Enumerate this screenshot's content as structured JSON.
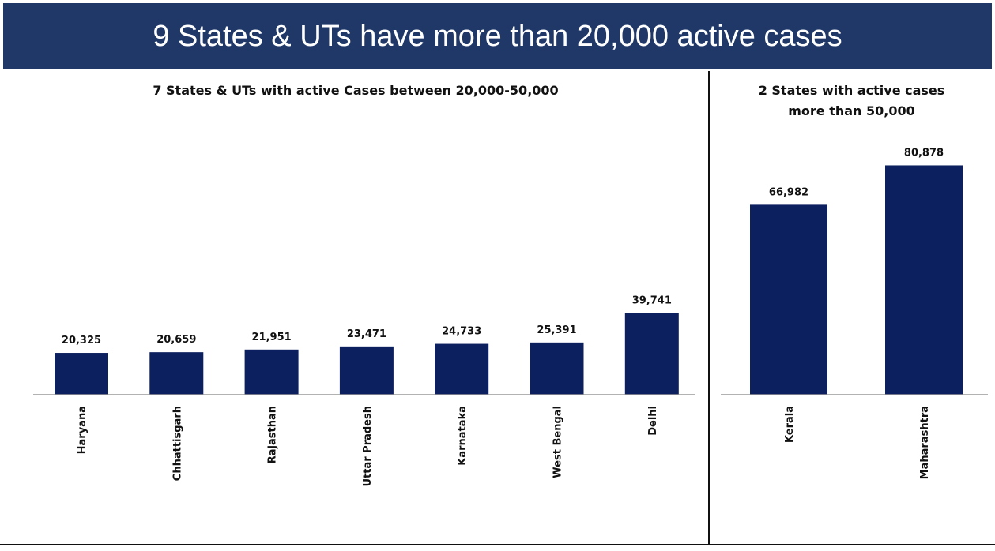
{
  "title": "9 States & UTs have more than 20,000 active cases",
  "chart_data": [
    {
      "type": "bar",
      "title": "7 States & UTs with active Cases between 20,000-50,000",
      "categories": [
        "Haryana",
        "Chhattisgarh",
        "Rajasthan",
        "Uttar Pradesh",
        "Karnataka",
        "West Bengal",
        "Delhi"
      ],
      "values": [
        20325,
        20659,
        21951,
        23471,
        24733,
        25391,
        39741
      ],
      "value_labels": [
        "20,325",
        "20,659",
        "21,951",
        "23,471",
        "24,733",
        "25,391",
        "39,741"
      ],
      "color": "#0c1f5e",
      "ylim": [
        0,
        142000
      ]
    },
    {
      "type": "bar",
      "title": "2 States with active cases more than 50,000",
      "categories": [
        "Kerala",
        "Maharashtra"
      ],
      "values": [
        66982,
        80878
      ],
      "value_labels": [
        "66,982",
        "80,878"
      ],
      "color": "#0c1f5e",
      "ylim": [
        0,
        103000
      ]
    }
  ]
}
